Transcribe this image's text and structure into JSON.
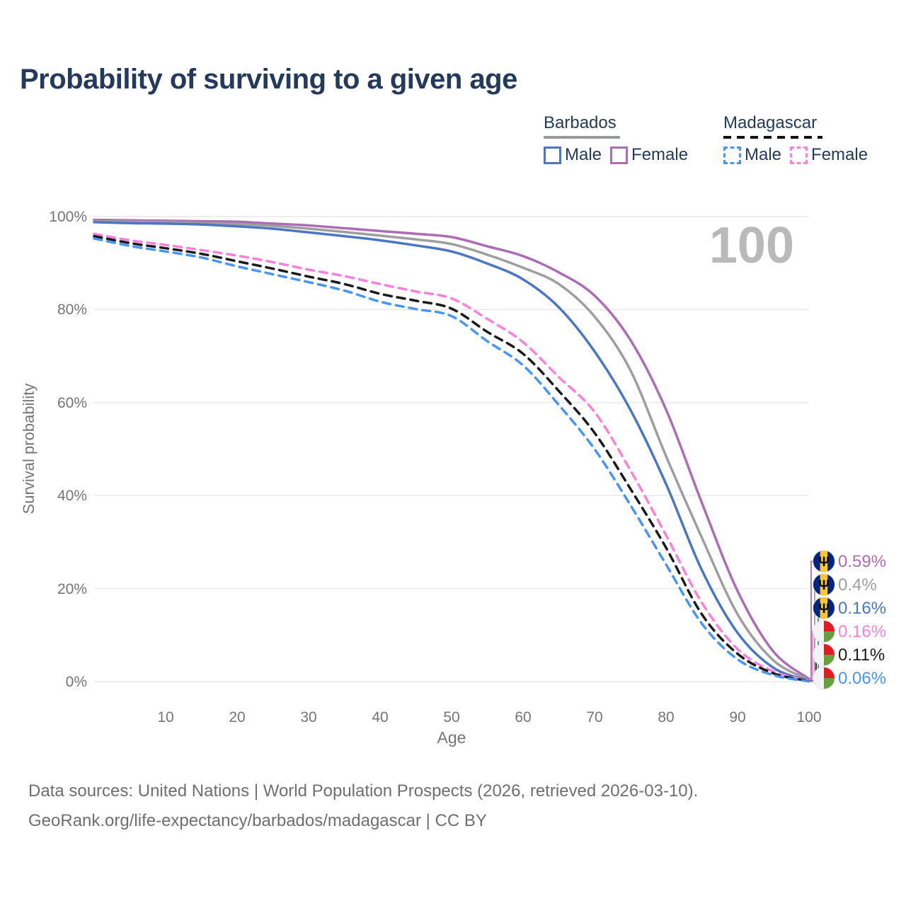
{
  "title": "Probability of surviving to a given age",
  "watermark": "100",
  "legend": {
    "groups": [
      {
        "name": "Barbados",
        "style": "solid",
        "items": [
          {
            "label": "Male"
          },
          {
            "label": "Female"
          }
        ]
      },
      {
        "name": "Madagascar",
        "style": "dashed",
        "items": [
          {
            "label": "Male"
          },
          {
            "label": "Female"
          }
        ]
      }
    ]
  },
  "y_axis": {
    "title": "Survival probability",
    "ticks": [
      "100%",
      "80%",
      "60%",
      "40%",
      "20%",
      "0%"
    ]
  },
  "x_axis": {
    "title": "Age",
    "ticks": [
      "10",
      "20",
      "30",
      "40",
      "50",
      "60",
      "70",
      "80",
      "90",
      "100"
    ]
  },
  "end_labels": [
    {
      "flag": "barbados-flag-icon",
      "value": "0.59%",
      "color": "#ad6cb5"
    },
    {
      "flag": "barbados-flag-icon",
      "value": "0.4%",
      "color": "#9e9e9e"
    },
    {
      "flag": "barbados-flag-icon",
      "value": "0.16%",
      "color": "#4a77c4"
    },
    {
      "flag": "madagascar-flag-icon",
      "value": "0.16%",
      "color": "#fb80dc"
    },
    {
      "flag": "madagascar-flag-icon",
      "value": "0.11%",
      "color": "#1a1a1a"
    },
    {
      "flag": "madagascar-flag-icon",
      "value": "0.06%",
      "color": "#4596f7"
    }
  ],
  "footer": {
    "line1": "Data sources: United Nations | World Population Prospects (2026, retrieved 2026-03-10).",
    "line2": "GeoRank.org/life-expectancy/barbados/madagascar | CC BY"
  },
  "colors": {
    "barbados_male": "#4a77c4",
    "barbados_female": "#ad6cb5",
    "barbados_both": "#9e9e9e",
    "madagascar_male": "#4596f7",
    "madagascar_female": "#fb80dc",
    "madagascar_both": "#1a1a1a",
    "grid": "#e7e7e7",
    "tick_text": "#757575",
    "title_text": "#233a5c",
    "watermark_text": "#b9b9b9"
  },
  "chart_data": {
    "type": "line",
    "title": "Probability of surviving to a given age",
    "xlabel": "Age",
    "ylabel": "Survival probability",
    "xlim": [
      0,
      100
    ],
    "ylim": [
      0,
      100
    ],
    "grid": true,
    "legend_position": "top-right",
    "x": [
      0,
      5,
      10,
      15,
      20,
      25,
      30,
      35,
      40,
      45,
      50,
      55,
      60,
      65,
      70,
      75,
      80,
      85,
      90,
      95,
      100
    ],
    "series": [
      {
        "name": "Barbados Female",
        "style": "solid",
        "color": "#ad6cb5",
        "end_label": "0.59%",
        "values": [
          99.3,
          99.2,
          99.1,
          99.0,
          98.9,
          98.5,
          98.1,
          97.5,
          96.9,
          96.3,
          95.6,
          93.6,
          91.5,
          88.0,
          83.0,
          73.5,
          58.5,
          38.5,
          19.5,
          6.5,
          0.59
        ]
      },
      {
        "name": "Barbados Both sexes",
        "style": "solid",
        "color": "#9e9e9e",
        "end_label": "0.4%",
        "values": [
          99.0,
          98.9,
          98.8,
          98.6,
          98.4,
          98.0,
          97.4,
          96.7,
          95.9,
          95.1,
          94.1,
          91.8,
          89.0,
          85.5,
          78.5,
          67.0,
          48.5,
          31.0,
          14.5,
          4.6,
          0.4
        ]
      },
      {
        "name": "Barbados Male",
        "style": "solid",
        "color": "#4a77c4",
        "end_label": "0.16%",
        "values": [
          98.8,
          98.6,
          98.5,
          98.3,
          97.9,
          97.4,
          96.6,
          95.8,
          94.9,
          93.8,
          92.5,
          89.9,
          86.5,
          80.5,
          71.0,
          58.5,
          42.5,
          24.0,
          10.5,
          3.0,
          0.16
        ]
      },
      {
        "name": "Madagascar Female",
        "style": "dashed",
        "color": "#fb80dc",
        "end_label": "0.16%",
        "values": [
          96.3,
          94.9,
          93.9,
          92.8,
          91.6,
          90.2,
          88.6,
          87.2,
          85.5,
          83.9,
          82.4,
          78.0,
          73.0,
          65.5,
          58.0,
          45.5,
          31.5,
          17.0,
          7.0,
          2.2,
          0.16
        ]
      },
      {
        "name": "Madagascar Both sexes",
        "style": "dashed",
        "color": "#1a1a1a",
        "end_label": "0.11%",
        "values": [
          95.8,
          94.3,
          93.2,
          92.0,
          90.4,
          88.8,
          87.1,
          85.5,
          83.4,
          81.9,
          80.2,
          75.2,
          70.5,
          62.5,
          53.5,
          41.5,
          28.8,
          14.5,
          6.0,
          1.8,
          0.11
        ]
      },
      {
        "name": "Madagascar Male",
        "style": "dashed",
        "color": "#4596f7",
        "end_label": "0.06%",
        "values": [
          95.3,
          93.7,
          92.5,
          91.2,
          89.3,
          87.6,
          85.9,
          84.1,
          81.7,
          80.1,
          78.6,
          73.2,
          68.0,
          59.5,
          50.0,
          38.0,
          25.2,
          12.5,
          4.8,
          1.4,
          0.06
        ]
      }
    ]
  }
}
